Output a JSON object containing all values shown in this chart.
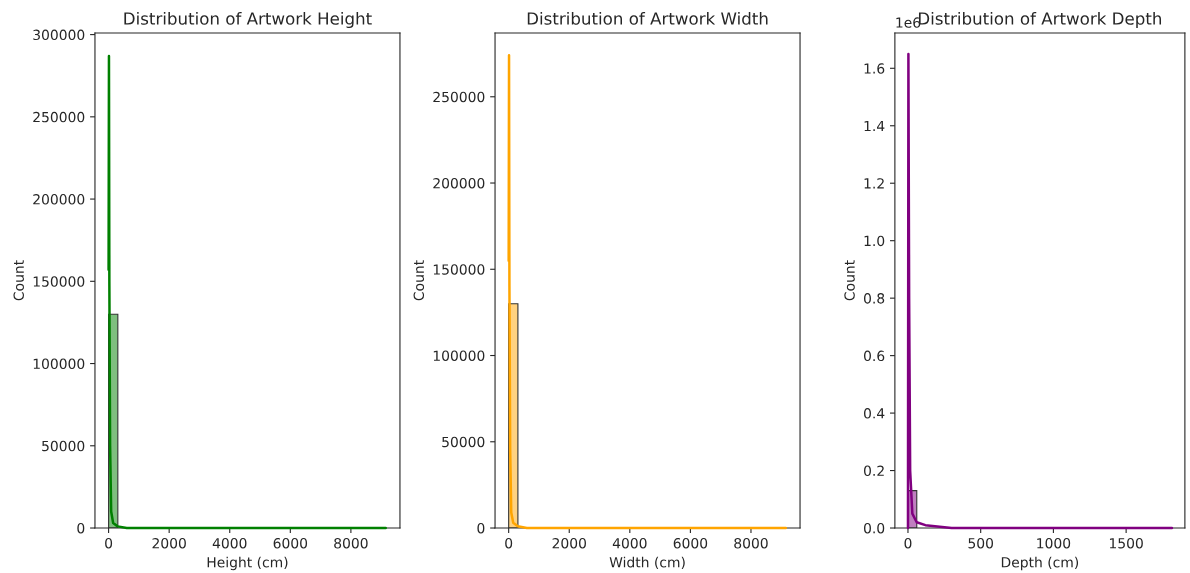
{
  "chart_data": [
    {
      "type": "histogram",
      "title": "Distribution of Artwork Height",
      "xlabel": "Height (cm)",
      "ylabel": "Count",
      "bins": [
        0,
        305,
        610,
        915,
        1220,
        1525,
        1830,
        2135,
        2440,
        2745,
        3050,
        3355,
        3660,
        3965,
        4270,
        4575,
        4880,
        5185,
        5490,
        5795,
        6100,
        6405,
        6710,
        7015,
        7320,
        7625,
        7930,
        8235,
        8540,
        8845,
        9150
      ],
      "series": [
        {
          "color": "#7fbf7f",
          "values": [
            130000,
            0,
            0,
            0,
            0,
            0,
            0,
            0,
            0,
            0,
            0,
            0,
            0,
            0,
            0,
            0,
            0,
            0,
            0,
            0,
            0,
            0,
            0,
            0,
            0,
            0,
            0,
            0,
            0,
            0
          ]
        },
        {
          "type": "line",
          "color": "#008000",
          "x": [
            0,
            12,
            25,
            50,
            85,
            150,
            300,
            600,
            9150
          ],
          "values": [
            157000,
            287000,
            150000,
            50000,
            10000,
            3000,
            1000,
            0,
            0
          ]
        }
      ],
      "xlim": [
        -450,
        9620
      ],
      "xticks": [
        0,
        2000,
        4000,
        6000,
        8000
      ],
      "ylim": [
        0,
        301000
      ],
      "yticks": [
        0,
        50000,
        100000,
        150000,
        200000,
        250000,
        300000
      ],
      "grid": false
    },
    {
      "type": "histogram",
      "title": "Distribution of Artwork Width",
      "xlabel": "Width (cm)",
      "ylabel": "Count",
      "bins": [
        0,
        305,
        610,
        915,
        1220,
        1525,
        1830,
        2135,
        2440,
        2745,
        3050,
        3355,
        3660,
        3965,
        4270,
        4575,
        4880,
        5185,
        5490,
        5795,
        6100,
        6405,
        6710,
        7015,
        7320,
        7625,
        7930,
        8235,
        8540,
        8845,
        9150
      ],
      "series": [
        {
          "color": "#ffd280",
          "values": [
            130000,
            0,
            0,
            0,
            0,
            0,
            0,
            0,
            0,
            0,
            0,
            0,
            0,
            0,
            0,
            0,
            0,
            0,
            0,
            0,
            0,
            0,
            0,
            0,
            0,
            0,
            0,
            0,
            0,
            0
          ]
        },
        {
          "type": "line",
          "color": "#ffa500",
          "x": [
            0,
            12,
            25,
            50,
            85,
            150,
            300,
            600,
            9150
          ],
          "values": [
            155000,
            274000,
            140000,
            45000,
            9000,
            3000,
            1000,
            0,
            0
          ]
        }
      ],
      "xlim": [
        -450,
        9620
      ],
      "xticks": [
        0,
        2000,
        4000,
        6000,
        8000
      ],
      "ylim": [
        0,
        287000
      ],
      "yticks": [
        0,
        50000,
        100000,
        150000,
        200000,
        250000
      ],
      "grid": false
    },
    {
      "type": "histogram",
      "title": "Distribution of Artwork Depth",
      "xlabel": "Depth (cm)",
      "ylabel": "Count",
      "bins": [
        0,
        60.5,
        121,
        181.5,
        242,
        302.5,
        363,
        423.5,
        484,
        544.5,
        605,
        665.5,
        726,
        786.5,
        847,
        907.5,
        968,
        1028.5,
        1089,
        1149.5,
        1210,
        1270.5,
        1331,
        1391.5,
        1452,
        1512.5,
        1573,
        1633.5,
        1694,
        1754.5,
        1815
      ],
      "series": [
        {
          "color": "#bf7fbf",
          "values": [
            0.13,
            0,
            0,
            0,
            0,
            0,
            0,
            0,
            0,
            0,
            0,
            0,
            0,
            0,
            0,
            0,
            0,
            0,
            0,
            0,
            0,
            0,
            0,
            0,
            0,
            0,
            0,
            0,
            0,
            0
          ]
        },
        {
          "type": "line",
          "color": "#800080",
          "x": [
            0,
            3,
            8,
            15,
            30,
            60,
            120,
            300,
            1815
          ],
          "values": [
            0,
            1.65,
            0.8,
            0.2,
            0.05,
            0.02,
            0.01,
            0,
            0
          ]
        }
      ],
      "xlim": [
        -90,
        1904
      ],
      "xticks": [
        0,
        500,
        1000,
        1500
      ],
      "ylim": [
        0,
        1.723
      ],
      "yticks": [
        {
          "value": 0,
          "label": "0.0"
        },
        {
          "value": 0.2,
          "label": "0.2"
        },
        {
          "value": 0.4,
          "label": "0.4"
        },
        {
          "value": 0.6,
          "label": "0.6"
        },
        {
          "value": 0.8,
          "label": "0.8"
        },
        {
          "value": 1.0,
          "label": "1.0"
        },
        {
          "value": 1.2,
          "label": "1.2"
        },
        {
          "value": 1.4,
          "label": "1.4"
        },
        {
          "value": 1.6,
          "label": "1.6"
        }
      ],
      "annotations": [
        "1e6"
      ],
      "grid": false
    }
  ]
}
